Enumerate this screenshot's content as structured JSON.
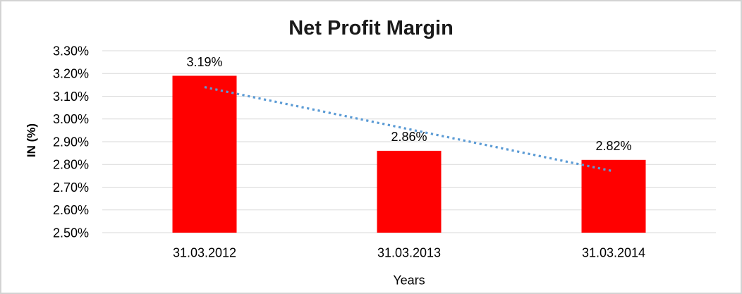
{
  "chart_data": {
    "type": "bar",
    "title": "Net Profit Margin",
    "xlabel": "Years",
    "ylabel": "IN (%)",
    "categories": [
      "31.03.2012",
      "31.03.2013",
      "31.03.2014"
    ],
    "values": [
      3.19,
      2.86,
      2.82
    ],
    "data_labels": [
      "3.19%",
      "2.86%",
      "2.82%"
    ],
    "ylim": [
      2.5,
      3.3
    ],
    "ytick_step": 0.1,
    "ytick_labels": [
      "2.50%",
      "2.60%",
      "2.70%",
      "2.80%",
      "2.90%",
      "3.00%",
      "3.10%",
      "3.20%",
      "3.30%"
    ],
    "grid": true,
    "legend": "none",
    "bar_color": "#ff0000",
    "gridline_color": "#d9d9d9",
    "frame_border_color": "#d3d3d3",
    "text_color": "#000000",
    "trendline": {
      "type": "linear",
      "style": "dotted",
      "color": "#5b9bd5",
      "start_value": 3.14,
      "end_value": 2.77
    }
  }
}
